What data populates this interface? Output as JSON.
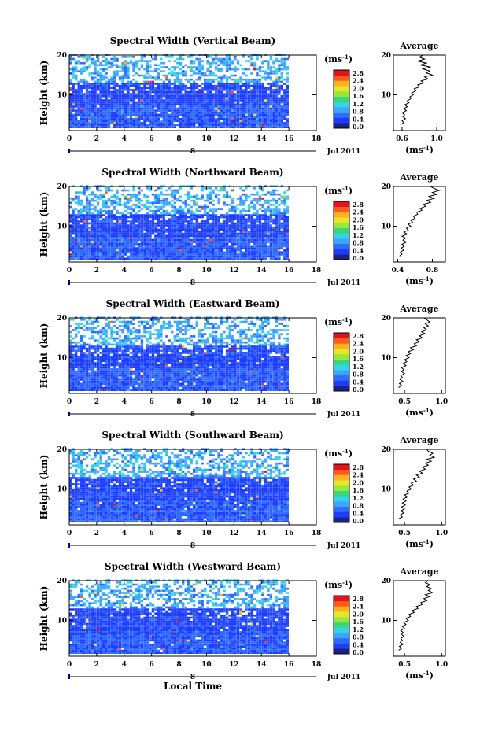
{
  "chart_data": [
    {
      "type": "heatmap",
      "title": "Spectral Width (Vertical Beam)",
      "ylabel": "Height (km)",
      "xticks": [
        "0",
        "2",
        "4",
        "6",
        "8",
        "10",
        "12",
        "14",
        "16",
        "18"
      ],
      "yticks": [
        "20",
        "10"
      ],
      "xlim": [
        0,
        18
      ],
      "ylim": [
        1,
        20
      ],
      "date_label": "Jul 2011",
      "date_marker": "8",
      "colorbar": {
        "unit": "(ms",
        "unit_exp": "-1",
        "unit_close": ")",
        "ticks": [
          "2.8",
          "2.4",
          "2.0",
          "1.6",
          "1.2",
          "0.8",
          "0.4",
          "0.0"
        ],
        "range": [
          0,
          2.8
        ]
      },
      "profile": {
        "title": "Average",
        "xlabel": "(ms",
        "xlabel_exp": "-1",
        "xlabel_close": ")",
        "xticks": [
          "0.6",
          "1.0"
        ],
        "xlim": [
          0.5,
          1.1
        ],
        "yticks": [
          "20",
          "10"
        ],
        "x": [
          0.58,
          0.62,
          0.6,
          0.64,
          0.61,
          0.63,
          0.6,
          0.65,
          0.62,
          0.66,
          0.63,
          0.68,
          0.66,
          0.7,
          0.69,
          0.73,
          0.71,
          0.76,
          0.74,
          0.8,
          0.78,
          0.85,
          0.82,
          0.9,
          0.86,
          0.95,
          0.88,
          0.92,
          0.84,
          0.93,
          0.81,
          0.88,
          0.78,
          0.86,
          0.8,
          0.84,
          0.77
        ],
        "y": [
          2.5,
          3,
          3.5,
          4,
          4.5,
          5,
          5.5,
          6,
          6.5,
          7,
          7.5,
          8,
          8.5,
          9,
          9.5,
          10,
          10.5,
          11,
          11.5,
          12,
          12.5,
          13,
          13.5,
          14,
          14.5,
          15,
          15.5,
          16,
          16.5,
          17,
          17.5,
          18,
          18.5,
          19,
          19.5,
          20,
          20
        ]
      }
    },
    {
      "type": "heatmap",
      "title": "Spectral Width (Northward Beam)",
      "ylabel": "Height (km)",
      "xticks": [
        "0",
        "2",
        "4",
        "6",
        "8",
        "10",
        "12",
        "14",
        "16",
        "18"
      ],
      "yticks": [
        "20",
        "10"
      ],
      "xlim": [
        0,
        18
      ],
      "ylim": [
        1,
        20
      ],
      "date_label": "Jul 2011",
      "date_marker": "8",
      "colorbar": {
        "unit": "(ms",
        "unit_exp": "-1",
        "unit_close": ")",
        "ticks": [
          "2.8",
          "2.4",
          "2.0",
          "1.6",
          "1.2",
          "0.8",
          "0.4",
          "0.0"
        ],
        "range": [
          0,
          2.8
        ]
      },
      "profile": {
        "title": "Average",
        "xlabel": "(ms",
        "xlabel_exp": "-1",
        "xlabel_close": ")",
        "xticks": [
          "0.4",
          "0.8"
        ],
        "xlim": [
          0.35,
          0.95
        ],
        "yticks": [
          "20",
          "10"
        ],
        "x": [
          0.42,
          0.45,
          0.43,
          0.47,
          0.44,
          0.48,
          0.45,
          0.5,
          0.46,
          0.49,
          0.45,
          0.51,
          0.47,
          0.52,
          0.5,
          0.55,
          0.52,
          0.57,
          0.55,
          0.6,
          0.58,
          0.63,
          0.62,
          0.68,
          0.66,
          0.72,
          0.7,
          0.78,
          0.74,
          0.82,
          0.76,
          0.85,
          0.8,
          0.88,
          0.82,
          0.78,
          0.8
        ],
        "y": [
          2.5,
          3,
          3.5,
          4,
          4.5,
          5,
          5.5,
          6,
          6.5,
          7,
          7.5,
          8,
          8.5,
          9,
          9.5,
          10,
          10.5,
          11,
          11.5,
          12,
          12.5,
          13,
          13.5,
          14,
          14.5,
          15,
          15.5,
          16,
          16.5,
          17,
          17.5,
          18,
          18.5,
          19,
          19.5,
          20,
          20
        ]
      }
    },
    {
      "type": "heatmap",
      "title": "Spectral Width (Eastward Beam)",
      "ylabel": "Height (km)",
      "xticks": [
        "0",
        "2",
        "4",
        "6",
        "8",
        "10",
        "12",
        "14",
        "16",
        "18"
      ],
      "yticks": [
        "20",
        "10"
      ],
      "xlim": [
        0,
        18
      ],
      "ylim": [
        1,
        20
      ],
      "date_label": "Jul 2011",
      "date_marker": "8",
      "colorbar": {
        "unit": "(ms",
        "unit_exp": "-1",
        "unit_close": ")",
        "ticks": [
          "2.8",
          "2.4",
          "2.0",
          "1.6",
          "1.2",
          "0.8",
          "0.4",
          "0.0"
        ],
        "range": [
          0,
          2.8
        ]
      },
      "profile": {
        "title": "Average",
        "xlabel": "(ms",
        "xlabel_exp": "-1",
        "xlabel_close": ")",
        "xticks": [
          "0.5",
          "1.0"
        ],
        "xlim": [
          0.35,
          1.05
        ],
        "yticks": [
          "20",
          "10"
        ],
        "x": [
          0.42,
          0.46,
          0.43,
          0.48,
          0.44,
          0.47,
          0.45,
          0.5,
          0.46,
          0.49,
          0.46,
          0.52,
          0.48,
          0.53,
          0.5,
          0.56,
          0.52,
          0.58,
          0.55,
          0.62,
          0.58,
          0.66,
          0.63,
          0.7,
          0.66,
          0.74,
          0.7,
          0.78,
          0.73,
          0.8,
          0.76,
          0.82,
          0.78,
          0.84,
          0.8,
          0.76,
          0.78
        ],
        "y": [
          2.5,
          3,
          3.5,
          4,
          4.5,
          5,
          5.5,
          6,
          6.5,
          7,
          7.5,
          8,
          8.5,
          9,
          9.5,
          10,
          10.5,
          11,
          11.5,
          12,
          12.5,
          13,
          13.5,
          14,
          14.5,
          15,
          15.5,
          16,
          16.5,
          17,
          17.5,
          18,
          18.5,
          19,
          19.5,
          20,
          20
        ]
      }
    },
    {
      "type": "heatmap",
      "title": "Spectral Width (Southward Beam)",
      "ylabel": "Height (km)",
      "xticks": [
        "0",
        "2",
        "4",
        "6",
        "8",
        "10",
        "12",
        "14",
        "16",
        "18"
      ],
      "yticks": [
        "20",
        "10"
      ],
      "xlim": [
        0,
        18
      ],
      "ylim": [
        1,
        20
      ],
      "date_label": "Jul 2011",
      "date_marker": "8",
      "colorbar": {
        "unit": "(ms",
        "unit_exp": "-1",
        "unit_close": ")",
        "ticks": [
          "2.8",
          "2.4",
          "2.0",
          "1.6",
          "1.2",
          "0.8",
          "0.4",
          "0.0"
        ],
        "range": [
          0,
          2.8
        ]
      },
      "profile": {
        "title": "Average",
        "xlabel": "(ms",
        "xlabel_exp": "-1",
        "xlabel_close": ")",
        "xticks": [
          "0.5",
          "1.0"
        ],
        "xlim": [
          0.35,
          1.05
        ],
        "yticks": [
          "20",
          "10"
        ],
        "x": [
          0.42,
          0.47,
          0.44,
          0.49,
          0.45,
          0.5,
          0.46,
          0.51,
          0.47,
          0.52,
          0.48,
          0.54,
          0.5,
          0.56,
          0.53,
          0.59,
          0.56,
          0.62,
          0.59,
          0.66,
          0.62,
          0.7,
          0.66,
          0.74,
          0.7,
          0.78,
          0.74,
          0.82,
          0.78,
          0.86,
          0.8,
          0.9,
          0.84,
          0.88,
          0.82,
          0.8,
          0.84
        ],
        "y": [
          2.5,
          3,
          3.5,
          4,
          4.5,
          5,
          5.5,
          6,
          6.5,
          7,
          7.5,
          8,
          8.5,
          9,
          9.5,
          10,
          10.5,
          11,
          11.5,
          12,
          12.5,
          13,
          13.5,
          14,
          14.5,
          15,
          15.5,
          16,
          16.5,
          17,
          17.5,
          18,
          18.5,
          19,
          19.5,
          20,
          20
        ]
      }
    },
    {
      "type": "heatmap",
      "title": "Spectral Width (Westward Beam)",
      "ylabel": "Height (km)",
      "xlabel": "Local Time",
      "xticks": [
        "0",
        "2",
        "4",
        "6",
        "8",
        "10",
        "12",
        "14",
        "16",
        "18"
      ],
      "yticks": [
        "20",
        "10"
      ],
      "xlim": [
        0,
        18
      ],
      "ylim": [
        1,
        20
      ],
      "date_label": "Jul 2011",
      "date_marker": "8",
      "colorbar": {
        "unit": "(ms",
        "unit_exp": "-1",
        "unit_close": ")",
        "ticks": [
          "2.8",
          "2.4",
          "2.0",
          "1.6",
          "1.2",
          "0.8",
          "0.4",
          "0.0"
        ],
        "range": [
          0,
          2.8
        ]
      },
      "profile": {
        "title": "Average",
        "xlabel": "(ms",
        "xlabel_exp": "-1",
        "xlabel_close": ")",
        "xticks": [
          "0.5",
          "1.0"
        ],
        "xlim": [
          0.35,
          1.05
        ],
        "yticks": [
          "20",
          "10"
        ],
        "x": [
          0.42,
          0.46,
          0.43,
          0.48,
          0.44,
          0.47,
          0.45,
          0.49,
          0.46,
          0.48,
          0.45,
          0.5,
          0.47,
          0.52,
          0.49,
          0.55,
          0.52,
          0.58,
          0.56,
          0.63,
          0.6,
          0.68,
          0.66,
          0.74,
          0.72,
          0.8,
          0.76,
          0.84,
          0.78,
          0.88,
          0.82,
          0.86,
          0.8,
          0.84,
          0.78,
          0.82,
          0.8
        ],
        "y": [
          2.5,
          3,
          3.5,
          4,
          4.5,
          5,
          5.5,
          6,
          6.5,
          7,
          7.5,
          8,
          8.5,
          9,
          9.5,
          10,
          10.5,
          11,
          11.5,
          12,
          12.5,
          13,
          13.5,
          14,
          14.5,
          15,
          15.5,
          16,
          16.5,
          17,
          17.5,
          18,
          18.5,
          19,
          19.5,
          20,
          20
        ]
      }
    }
  ],
  "colors": {
    "ink": "#000000",
    "background": "#ffffff",
    "palette": [
      "#1a237e",
      "#1e3cff",
      "#2e6bff",
      "#3fa4ff",
      "#33d4e8",
      "#3bd67a",
      "#9be63a",
      "#e8e62a",
      "#ffb020",
      "#ff5a1a",
      "#e0141e"
    ]
  }
}
